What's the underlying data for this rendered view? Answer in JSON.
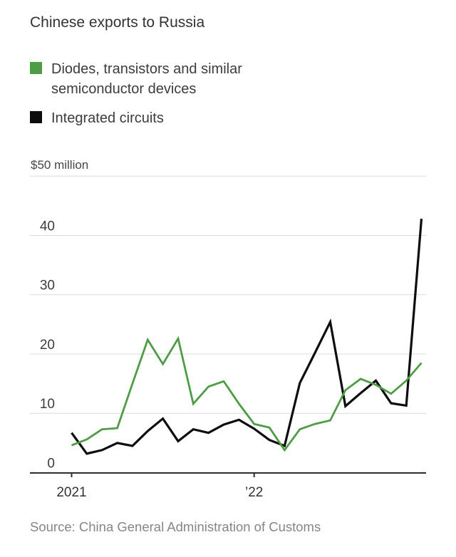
{
  "title": "Chinese exports to Russia",
  "legend": [
    {
      "label": "Diodes, transistors and similar semiconductor devices",
      "color": "#4f9c46"
    },
    {
      "label": "Integrated circuits",
      "color": "#0d0d0d"
    }
  ],
  "y_axis_unit_label": "$50 million",
  "source": "Source: China General Administration of Customs",
  "chart_data": {
    "type": "line",
    "title": "Chinese exports to Russia",
    "ylabel": "$50 million",
    "x": [
      "2021-01",
      "2021-02",
      "2021-03",
      "2021-04",
      "2021-05",
      "2021-06",
      "2021-07",
      "2021-08",
      "2021-09",
      "2021-10",
      "2021-11",
      "2021-12",
      "2022-01",
      "2022-02",
      "2022-03",
      "2022-04",
      "2022-05",
      "2022-06",
      "2022-07",
      "2022-08",
      "2022-09",
      "2022-10",
      "2022-11",
      "2022-12"
    ],
    "x_tick_labels": [
      {
        "month_index": 0,
        "label": "2021"
      },
      {
        "month_index": 12,
        "label": "’22"
      }
    ],
    "series": [
      {
        "name": "Diodes, transistors and similar semiconductor devices",
        "color": "#4f9c46",
        "values": [
          4.6,
          5.6,
          7.3,
          7.5,
          15.0,
          22.4,
          18.3,
          22.6,
          11.6,
          14.5,
          15.4,
          11.6,
          8.2,
          7.6,
          3.8,
          7.3,
          8.2,
          8.8,
          13.9,
          15.8,
          14.8,
          13.3,
          15.5,
          18.5
        ]
      },
      {
        "name": "Integrated circuits",
        "color": "#0d0d0d",
        "values": [
          6.7,
          3.2,
          3.8,
          5.0,
          4.5,
          7.0,
          9.1,
          5.3,
          7.3,
          6.7,
          8.1,
          8.9,
          7.4,
          5.5,
          4.5,
          15.1,
          20.2,
          25.4,
          11.2,
          13.4,
          15.5,
          11.7,
          11.3,
          42.8
        ]
      }
    ],
    "ylim": [
      0,
      50
    ],
    "yticks": [
      0,
      10,
      20,
      30,
      40
    ],
    "gridline_values": [
      10,
      20,
      30,
      40,
      50
    ],
    "grid": true,
    "legend_position": "top-left",
    "colors": {
      "grid": "#dcdcdc",
      "axis": "#2f2f2f"
    }
  }
}
